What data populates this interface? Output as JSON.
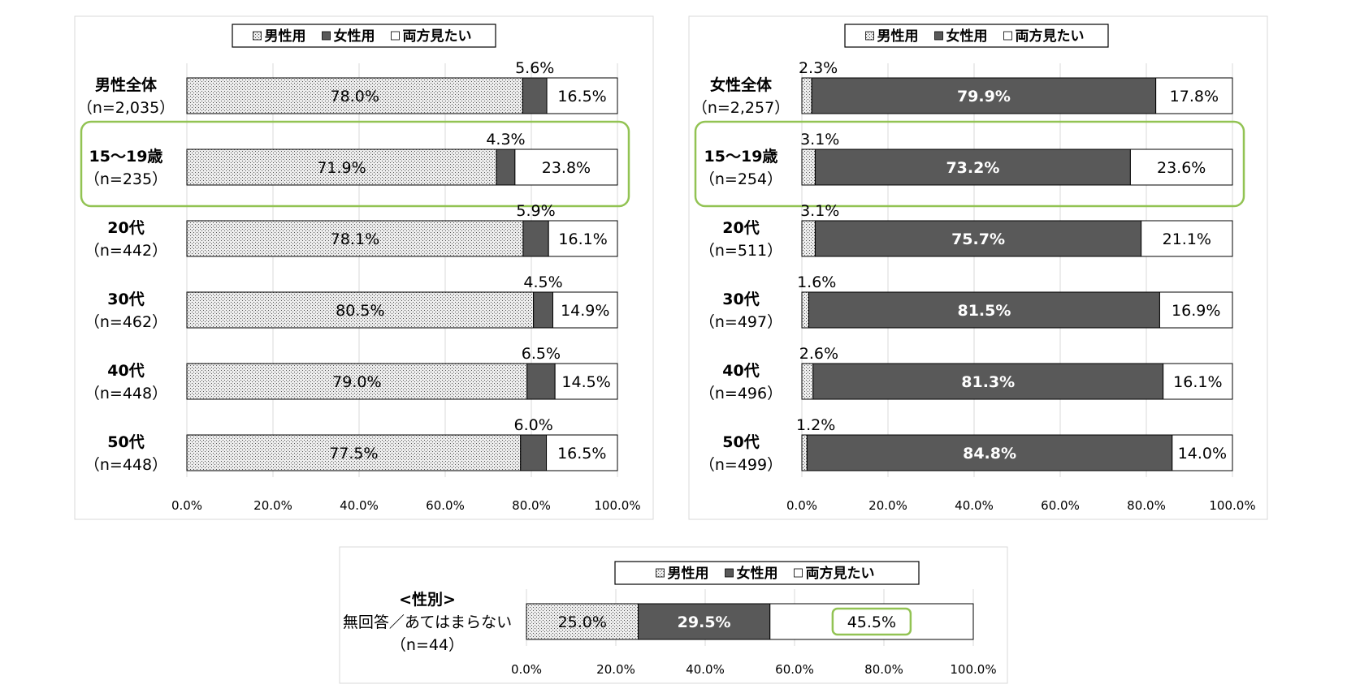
{
  "legend": {
    "male": "男性用",
    "female": "女性用",
    "both": "両方見たい"
  },
  "colors": {
    "male": "#e9e9e9",
    "female": "#595959",
    "both": "#ffffff",
    "highlight": "#92c353",
    "grid": "#d9d9d9"
  },
  "chart_data": [
    {
      "type": "bar",
      "orientation": "horizontal",
      "stacked": true,
      "xlim": [
        0,
        100
      ],
      "xticks": [
        "0.0%",
        "20.0%",
        "40.0%",
        "60.0%",
        "80.0%",
        "100.0%"
      ],
      "legend_position": "top",
      "highlighted_category": 1,
      "categories": [
        [
          "男性全体",
          "（n=2,035）"
        ],
        [
          "15～19歳",
          "（n=235）"
        ],
        [
          "20代",
          "（n=442）"
        ],
        [
          "30代",
          "（n=462）"
        ],
        [
          "40代",
          "（n=448）"
        ],
        [
          "50代",
          "（n=448）"
        ]
      ],
      "series": [
        {
          "name": "男性用",
          "values": [
            78.0,
            71.9,
            78.1,
            80.5,
            79.0,
            77.5
          ],
          "labels": [
            "78.0%",
            "71.9%",
            "78.1%",
            "80.5%",
            "79.0%",
            "77.5%"
          ]
        },
        {
          "name": "女性用",
          "values": [
            5.6,
            4.3,
            5.9,
            4.5,
            6.5,
            6.0
          ],
          "labels": [
            "5.6%",
            "4.3%",
            "5.9%",
            "4.5%",
            "6.5%",
            "6.0%"
          ]
        },
        {
          "name": "両方見たい",
          "values": [
            16.5,
            23.8,
            16.1,
            14.9,
            14.5,
            16.5
          ],
          "labels": [
            "16.5%",
            "23.8%",
            "16.1%",
            "14.9%",
            "14.5%",
            "16.5%"
          ]
        }
      ]
    },
    {
      "type": "bar",
      "orientation": "horizontal",
      "stacked": true,
      "xlim": [
        0,
        100
      ],
      "xticks": [
        "0.0%",
        "20.0%",
        "40.0%",
        "60.0%",
        "80.0%",
        "100.0%"
      ],
      "legend_position": "top",
      "highlighted_category": 1,
      "categories": [
        [
          "女性全体",
          "（n=2,257）"
        ],
        [
          "15～19歳",
          "（n=254）"
        ],
        [
          "20代",
          "（n=511）"
        ],
        [
          "30代",
          "（n=497）"
        ],
        [
          "40代",
          "（n=496）"
        ],
        [
          "50代",
          "（n=499）"
        ]
      ],
      "series": [
        {
          "name": "男性用",
          "values": [
            2.3,
            3.1,
            3.1,
            1.6,
            2.6,
            1.2
          ],
          "labels": [
            "2.3%",
            "3.1%",
            "3.1%",
            "1.6%",
            "2.6%",
            "1.2%"
          ]
        },
        {
          "name": "女性用",
          "values": [
            79.9,
            73.2,
            75.7,
            81.5,
            81.3,
            84.8
          ],
          "labels": [
            "79.9%",
            "73.2%",
            "75.7%",
            "81.5%",
            "81.3%",
            "84.8%"
          ]
        },
        {
          "name": "両方見たい",
          "values": [
            17.8,
            23.6,
            21.1,
            16.9,
            16.1,
            14.0
          ],
          "labels": [
            "17.8%",
            "23.6%",
            "21.1%",
            "16.9%",
            "16.1%",
            "14.0%"
          ]
        }
      ]
    },
    {
      "type": "bar",
      "orientation": "horizontal",
      "stacked": true,
      "xlim": [
        0,
        100
      ],
      "xticks": [
        "0.0%",
        "20.0%",
        "40.0%",
        "60.0%",
        "80.0%",
        "100.0%"
      ],
      "legend_position": "top",
      "highlighted_label": "両方見たい",
      "categories": [
        [
          "<性別>",
          "無回答／あてはまらない",
          "（n=44）"
        ]
      ],
      "series": [
        {
          "name": "男性用",
          "values": [
            25.0
          ],
          "labels": [
            "25.0%"
          ]
        },
        {
          "name": "女性用",
          "values": [
            29.5
          ],
          "labels": [
            "29.5%"
          ]
        },
        {
          "name": "両方見たい",
          "values": [
            45.5
          ],
          "labels": [
            "45.5%"
          ]
        }
      ]
    }
  ]
}
